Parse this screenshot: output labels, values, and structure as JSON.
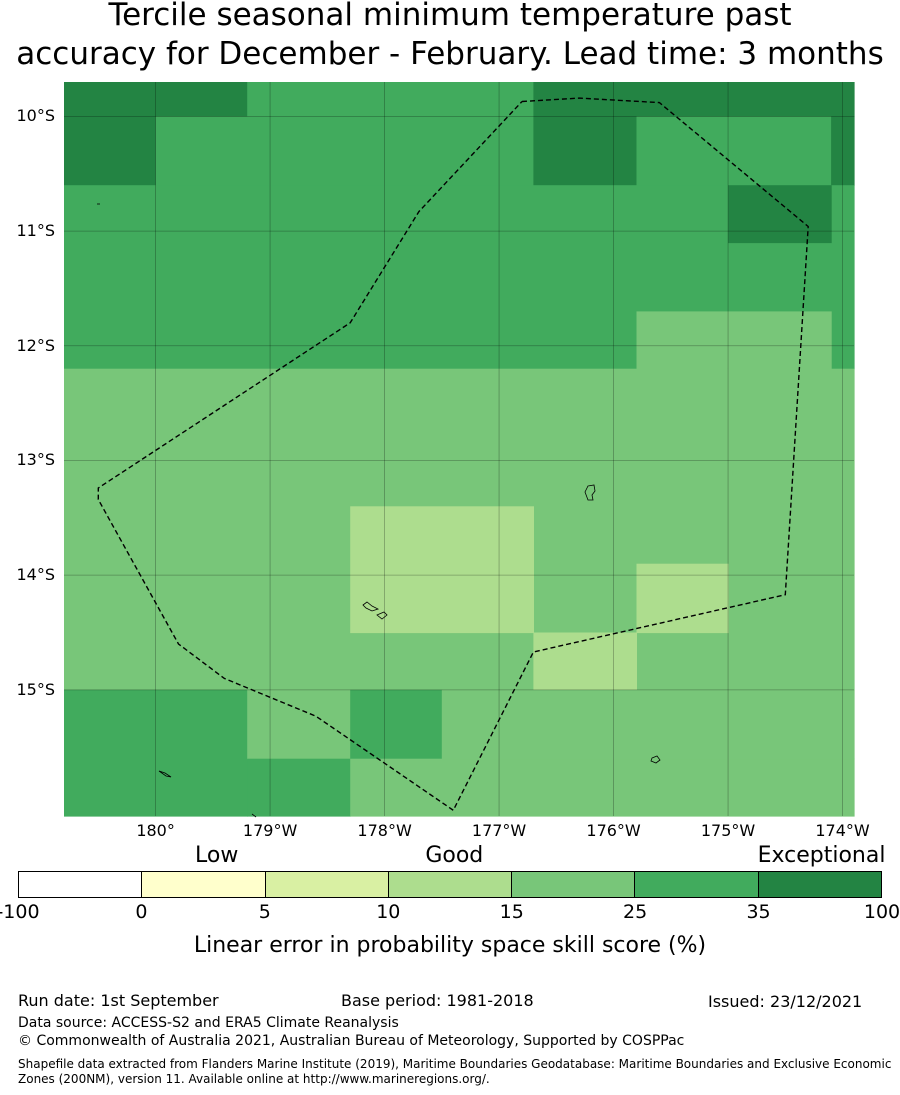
{
  "title": {
    "line1": "Tercile seasonal minimum temperature past",
    "line2": "accuracy for December - February. Lead time: 3 months"
  },
  "chart_data": {
    "type": "heatmap",
    "lon_range": [
      -180.8,
      -173.9
    ],
    "lat_range": [
      -16.1,
      -9.7
    ],
    "cell_size_deg": 0.833,
    "lat_ticks": [
      "10°S",
      "11°S",
      "12°S",
      "13°S",
      "14°S",
      "15°S"
    ],
    "lon_ticks": [
      "180°",
      "179°W",
      "178°W",
      "177°W",
      "176°W",
      "175°W",
      "174°W"
    ],
    "grid": true,
    "colorbar": {
      "label": "Linear error in probability space skill score (%)",
      "ticks": [
        "-100",
        "0",
        "5",
        "10",
        "15",
        "25",
        "35",
        "100"
      ],
      "colors": [
        "#ffffff",
        "#ffffcc",
        "#d9f0a3",
        "#addd8e",
        "#78c679",
        "#41ab5d",
        "#238443"
      ],
      "categories": [
        {
          "label": "Low",
          "position": 0.23
        },
        {
          "label": "Good",
          "position": 0.505
        },
        {
          "label": "Exceptional",
          "position": 0.93
        }
      ]
    },
    "cells_note": "cell values are the skill-score class index into colorbar.colors",
    "cells": [
      {
        "lon": [
          -180.8,
          -179.2
        ],
        "lat": [
          -10.0,
          -9.7
        ],
        "class": 6
      },
      {
        "lon": [
          -179.2,
          -176.7
        ],
        "lat": [
          -10.0,
          -9.7
        ],
        "class": 5
      },
      {
        "lon": [
          -176.7,
          -175.8
        ],
        "lat": [
          -10.0,
          -9.7
        ],
        "class": 6
      },
      {
        "lon": [
          -175.8,
          -173.9
        ],
        "lat": [
          -10.0,
          -9.7
        ],
        "class": 6
      },
      {
        "lon": [
          -180.8,
          -180.0
        ],
        "lat": [
          -10.6,
          -10.0
        ],
        "class": 6
      },
      {
        "lon": [
          -180.0,
          -176.7
        ],
        "lat": [
          -10.6,
          -10.0
        ],
        "class": 5
      },
      {
        "lon": [
          -176.7,
          -175.8
        ],
        "lat": [
          -10.6,
          -10.0
        ],
        "class": 6
      },
      {
        "lon": [
          -175.8,
          -174.1
        ],
        "lat": [
          -10.6,
          -10.0
        ],
        "class": 5
      },
      {
        "lon": [
          -174.1,
          -173.9
        ],
        "lat": [
          -10.6,
          -10.0
        ],
        "class": 6
      },
      {
        "lon": [
          -180.8,
          -173.9
        ],
        "lat": [
          -12.2,
          -10.6
        ],
        "class": 5
      },
      {
        "lon": [
          -175.0,
          -174.1
        ],
        "lat": [
          -11.1,
          -10.6
        ],
        "class": 6
      },
      {
        "lon": [
          -175.8,
          -174.1
        ],
        "lat": [
          -12.2,
          -11.7
        ],
        "class": 4
      },
      {
        "lon": [
          -180.8,
          -173.9
        ],
        "lat": [
          -15.0,
          -12.2
        ],
        "class": 4
      },
      {
        "lon": [
          -178.3,
          -176.7
        ],
        "lat": [
          -14.5,
          -13.4
        ],
        "class": 3
      },
      {
        "lon": [
          -175.8,
          -175.0
        ],
        "lat": [
          -14.5,
          -13.9
        ],
        "class": 3
      },
      {
        "lon": [
          -176.7,
          -175.8
        ],
        "lat": [
          -15.0,
          -14.5
        ],
        "class": 3
      },
      {
        "lon": [
          -180.8,
          -179.2
        ],
        "lat": [
          -16.1,
          -15.0
        ],
        "class": 5
      },
      {
        "lon": [
          -179.2,
          -178.3
        ],
        "lat": [
          -15.6,
          -15.0
        ],
        "class": 4
      },
      {
        "lon": [
          -178.3,
          -177.5
        ],
        "lat": [
          -15.6,
          -15.0
        ],
        "class": 5
      },
      {
        "lon": [
          -179.2,
          -178.3
        ],
        "lat": [
          -16.1,
          -15.6
        ],
        "class": 5
      },
      {
        "lon": [
          -178.3,
          -173.9
        ],
        "lat": [
          -16.1,
          -15.6
        ],
        "class": 4
      },
      {
        "lon": [
          -177.5,
          -173.9
        ],
        "lat": [
          -15.6,
          -15.0
        ],
        "class": 4
      }
    ],
    "eez_boundary": [
      [
        -176.8,
        -9.87
      ],
      [
        -176.3,
        -9.84
      ],
      [
        -175.6,
        -9.88
      ],
      [
        -174.3,
        -10.96
      ],
      [
        -174.5,
        -14.17
      ],
      [
        -176.7,
        -14.67
      ],
      [
        -177.4,
        -16.05
      ],
      [
        -178.6,
        -15.23
      ],
      [
        -179.4,
        -14.9
      ],
      [
        -179.8,
        -14.6
      ],
      [
        -180.5,
        -13.34
      ],
      [
        -180.5,
        -13.24
      ],
      [
        -178.3,
        -11.8
      ],
      [
        -177.7,
        -10.83
      ]
    ]
  },
  "footer": {
    "run_date": "Run date: 1st September",
    "base_period": "Base period: 1981-2018",
    "issued": "Issued: 23/12/2021",
    "data_source": "Data source: ACCESS-S2 and ERA5 Climate Reanalysis",
    "copyright": "© Commonwealth of Australia 2021, Australian Bureau of Meteorology, Supported by COSPPac",
    "shapefile_line1": "Shapefile data extracted from Flanders Marine Institute (2019), Maritime Boundaries Geodatabase: Maritime Boundaries and Exclusive Economic",
    "shapefile_line2": "Zones (200NM), version 11. Available online at http://www.marineregions.org/."
  }
}
